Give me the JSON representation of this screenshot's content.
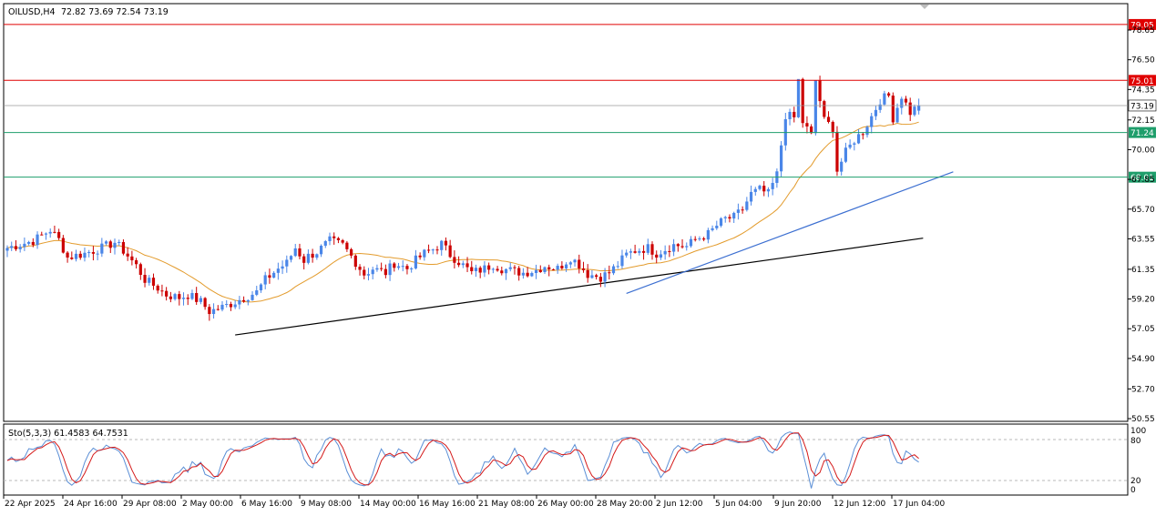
{
  "header": {
    "symbol": "OILUSD,H4",
    "ohlc": "72.82 73.69 72.54 73.19"
  },
  "stoch": {
    "label": "Sto(5,3,3) 61.4583 64.7531",
    "levels": [
      "100",
      "80",
      "20",
      "0"
    ]
  },
  "colors": {
    "bull": "#4a86e8",
    "bear": "#cc0000",
    "resistance": "#e00000",
    "support": "#1e9e6b",
    "ma": "#e39b2c",
    "trend_blue": "#3c6fd1",
    "trend_black": "#000000",
    "stoch_main": "#5b8fd6",
    "stoch_signal": "#d41a1a",
    "current_price": "#9a9a9a"
  },
  "chart_data": {
    "type": "candlestick",
    "symbol": "OILUSD",
    "timeframe": "H4",
    "ylim": [
      50.55,
      80.5
    ],
    "y_ticks": [
      "78.65",
      "76.50",
      "74.35",
      "72.15",
      "70.00",
      "67.85",
      "65.70",
      "63.55",
      "61.35",
      "59.20",
      "57.05",
      "54.90",
      "52.70",
      "50.55"
    ],
    "x_ticks": [
      "22 Apr 2025",
      "24 Apr 16:00",
      "29 Apr 08:00",
      "2 May 00:00",
      "6 May 16:00",
      "9 May 08:00",
      "14 May 00:00",
      "16 May 16:00",
      "21 May 08:00",
      "26 May 00:00",
      "28 May 20:00",
      "2 Jun 12:00",
      "5 Jun 04:00",
      "9 Jun 20:00",
      "12 Jun 12:00",
      "17 Jun 04:00"
    ],
    "horizontal_levels": [
      {
        "value": 79.05,
        "label": "79.05",
        "kind": "resistance"
      },
      {
        "value": 75.01,
        "label": "75.01",
        "kind": "resistance"
      },
      {
        "value": 71.24,
        "label": "71.24",
        "kind": "support"
      },
      {
        "value": 68.01,
        "label": "68.01",
        "kind": "support"
      }
    ],
    "current_price": {
      "value": 73.19,
      "label": "73.19"
    },
    "close_path": [
      [
        0,
        62.9
      ],
      [
        6,
        63.4
      ],
      [
        10,
        64.2
      ],
      [
        12,
        63.5
      ],
      [
        14,
        62.2
      ],
      [
        18,
        62.5
      ],
      [
        22,
        62.9
      ],
      [
        25,
        63.3
      ],
      [
        27,
        62.7
      ],
      [
        30,
        61.6
      ],
      [
        32,
        60.6
      ],
      [
        35,
        60.0
      ],
      [
        37,
        59.5
      ],
      [
        40,
        59.3
      ],
      [
        42,
        59.5
      ],
      [
        45,
        59.0
      ],
      [
        47,
        58.3
      ],
      [
        50,
        58.6
      ],
      [
        53,
        59.0
      ],
      [
        55,
        59.3
      ],
      [
        58,
        59.7
      ],
      [
        60,
        60.6
      ],
      [
        63,
        61.4
      ],
      [
        65,
        61.8
      ],
      [
        67,
        62.9
      ],
      [
        69,
        62.0
      ],
      [
        70,
        62.3
      ],
      [
        72,
        62.6
      ],
      [
        75,
        63.4
      ],
      [
        78,
        63.1
      ],
      [
        80,
        62.3
      ],
      [
        83,
        61.0
      ],
      [
        85,
        61.4
      ],
      [
        88,
        61.1
      ],
      [
        90,
        61.8
      ],
      [
        93,
        61.4
      ],
      [
        95,
        62.0
      ],
      [
        97,
        62.5
      ],
      [
        99,
        62.8
      ],
      [
        101,
        63.2
      ],
      [
        103,
        62.4
      ],
      [
        105,
        61.9
      ],
      [
        108,
        61.1
      ],
      [
        111,
        61.4
      ],
      [
        113,
        61.7
      ],
      [
        115,
        61.4
      ],
      [
        118,
        61.2
      ],
      [
        120,
        61.1
      ],
      [
        123,
        61.3
      ],
      [
        125,
        61.6
      ],
      [
        128,
        61.4
      ],
      [
        131,
        62.2
      ],
      [
        133,
        61.7
      ],
      [
        135,
        61.0
      ],
      [
        138,
        60.8
      ],
      [
        140,
        61.1
      ],
      [
        142,
        61.7
      ],
      [
        144,
        62.4
      ],
      [
        146,
        62.7
      ],
      [
        149,
        62.9
      ],
      [
        151,
        62.5
      ],
      [
        153,
        62.8
      ],
      [
        155,
        63.1
      ],
      [
        158,
        63.0
      ],
      [
        160,
        63.5
      ],
      [
        163,
        63.9
      ],
      [
        165,
        64.5
      ],
      [
        167,
        65.0
      ],
      [
        169,
        65.1
      ],
      [
        171,
        65.7
      ],
      [
        173,
        66.8
      ],
      [
        175,
        67.1
      ],
      [
        177,
        66.8
      ],
      [
        179,
        68.2
      ],
      [
        181,
        72.5
      ],
      [
        183,
        72.3
      ],
      [
        184,
        75.0
      ],
      [
        185,
        72.0
      ],
      [
        187,
        71.0
      ],
      [
        188,
        75.0
      ],
      [
        190,
        72.1
      ],
      [
        192,
        71.6
      ],
      [
        193,
        68.5
      ],
      [
        195,
        69.8
      ],
      [
        197,
        70.7
      ],
      [
        199,
        71.3
      ],
      [
        201,
        72.4
      ],
      [
        203,
        73.6
      ],
      [
        205,
        73.9
      ],
      [
        206,
        72.3
      ],
      [
        208,
        73.9
      ],
      [
        210,
        72.7
      ],
      [
        212,
        73.19
      ]
    ]
  }
}
